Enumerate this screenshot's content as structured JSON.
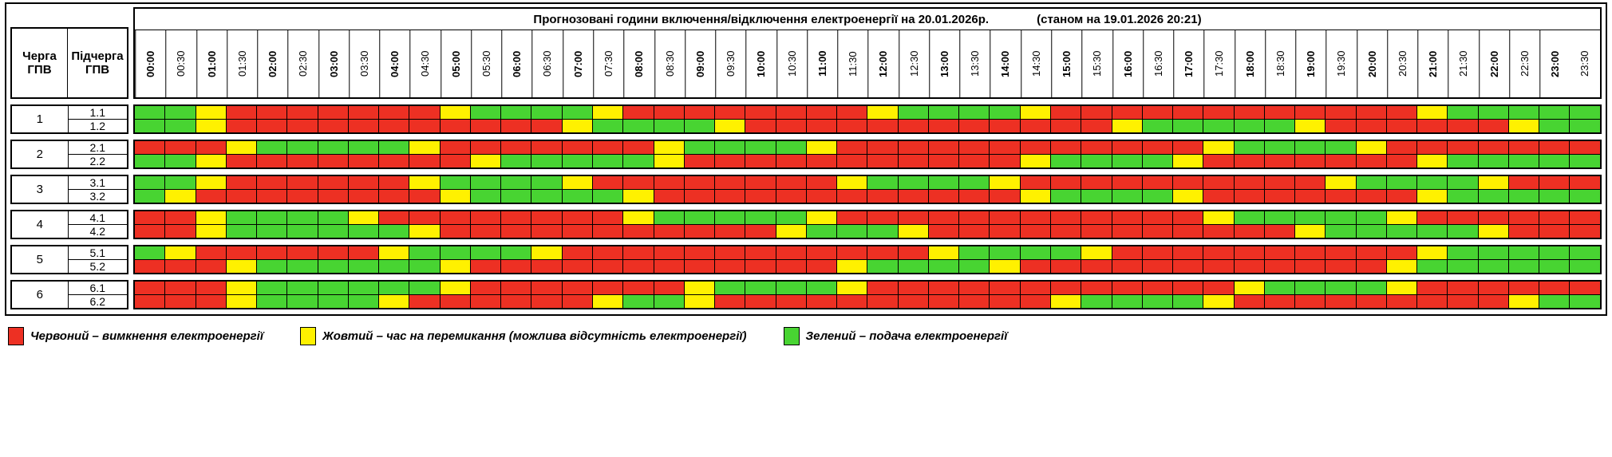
{
  "header": {
    "queue_col": "Черга\nГПВ",
    "subqueue_col": "Підчерга\nГПВ",
    "title": "Прогнозовані години включення/відключення електроенергії на 20.01.2026р.",
    "title_note": "(станом на 19.01.2026 20:21)"
  },
  "time_labels": [
    "00:00",
    "00:30",
    "01:00",
    "01:30",
    "02:00",
    "02:30",
    "03:00",
    "03:30",
    "04:00",
    "04:30",
    "05:00",
    "05:30",
    "06:00",
    "06:30",
    "07:00",
    "07:30",
    "08:00",
    "08:30",
    "09:00",
    "09:30",
    "10:00",
    "10:30",
    "11:00",
    "11:30",
    "12:00",
    "12:30",
    "13:00",
    "13:30",
    "14:00",
    "14:30",
    "15:00",
    "15:30",
    "16:00",
    "16:30",
    "17:00",
    "17:30",
    "18:00",
    "18:30",
    "19:00",
    "19:30",
    "20:00",
    "20:30",
    "21:00",
    "21:30",
    "22:00",
    "22:30",
    "23:00",
    "23:30"
  ],
  "colors": {
    "R": "#ed3023",
    "Y": "#fff100",
    "G": "#48d432"
  },
  "queues": [
    {
      "number": "1",
      "rows": [
        {
          "label": "1.1",
          "pattern": "GGYRRRRRRRYGGGGYRRRRRRRRYGGGGYRRRRRRRRRRRRYGGGGG"
        },
        {
          "label": "1.2",
          "pattern": "GGYRRRRRRRRRRRYGGGGYRRRRRRRRRRRRYGGGGGYRRRRRRYGG"
        }
      ]
    },
    {
      "number": "2",
      "rows": [
        {
          "label": "2.1",
          "pattern": "RRRYGGGGGYRRRRRRRYGGGGYRRRRRRRRRRRRYGGGGYRRRRRRR"
        },
        {
          "label": "2.2",
          "pattern": "GGYRRRRRRRRYGGGGGYRRRRRRRRRRRYGGGGYRRRRRRRYGGGGG"
        }
      ]
    },
    {
      "number": "3",
      "rows": [
        {
          "label": "3.1",
          "pattern": "GGYRRRRRRYGGGGYRRRRRRRRYGGGGYRRRRRRRRRRYGGGGYRRR"
        },
        {
          "label": "3.2",
          "pattern": "GYRRRRRRRRYGGGGGYRRRRRRRRRRRRYGGGGYRRRRRRRYGGGGG"
        }
      ]
    },
    {
      "number": "4",
      "rows": [
        {
          "label": "4.1",
          "pattern": "RRYGGGGYRRRRRRRRYGGGGGYRRRRRRRRRRRRYGGGGGYRRRRRR"
        },
        {
          "label": "4.2",
          "pattern": "RRYGGGGGGYRRRRRRRRRRRYGGGYRRRRRRRRRRRRYGGGGGYRRR"
        }
      ]
    },
    {
      "number": "5",
      "rows": [
        {
          "label": "5.1",
          "pattern": "GYRRRRRRYGGGGYRRRRRRRRRRRRYGGGGYRRRRRRRRRRYGGGGG"
        },
        {
          "label": "5.2",
          "pattern": "RRRYGGGGGGYRRRRRRRRRRRRYGGGGYRRRRRRRRRRRRYGGGGGG"
        }
      ]
    },
    {
      "number": "6",
      "rows": [
        {
          "label": "6.1",
          "pattern": "RRRYGGGGGGYRRRRRRRYGGGGYRRRRRRRRRRRRYGGGGYRRRRRR"
        },
        {
          "label": "6.2",
          "pattern": "RRRYGGGGYRRRRRRYGGYRRRRRRRRRRRYGGGGYRRRRRRRRRYGG"
        }
      ]
    }
  ],
  "legend": [
    {
      "color": "R",
      "label": "Червоний – вимкнення електроенергії"
    },
    {
      "color": "Y",
      "label": "Жовтий – час на перемикання (можлива відсутність електроенергії)"
    },
    {
      "color": "G",
      "label": "Зелений – подача електроенергії"
    }
  ]
}
